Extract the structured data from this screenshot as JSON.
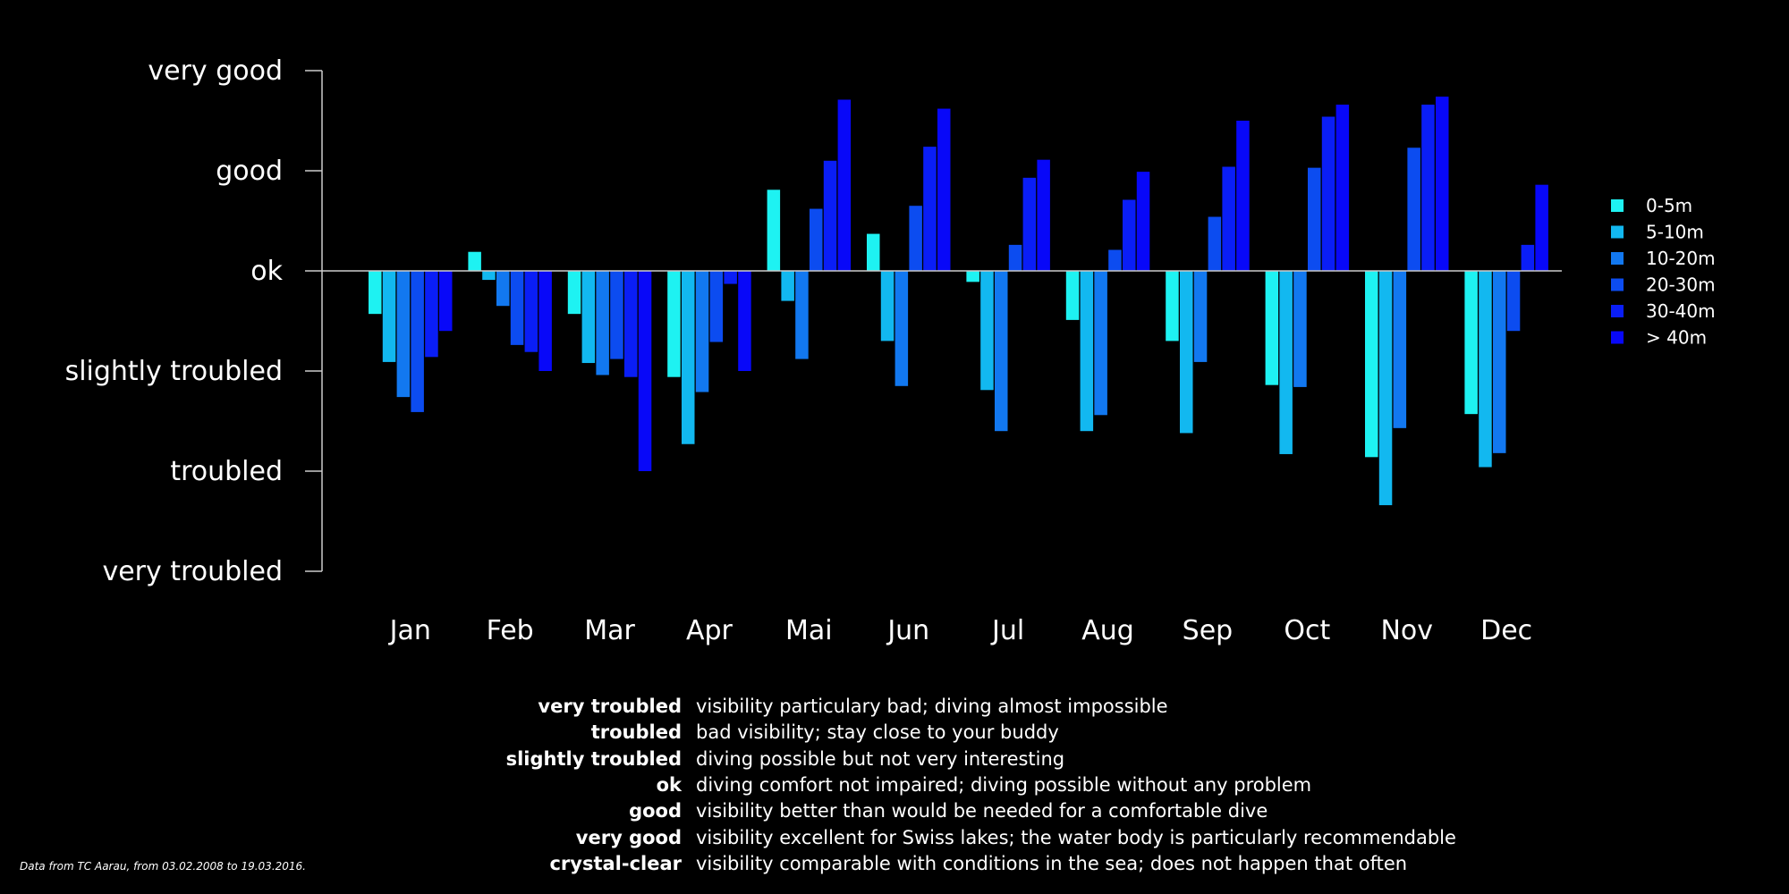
{
  "chart_data": {
    "type": "bar",
    "title": "",
    "xlabel": "",
    "ylabel": "",
    "categories": [
      "Jan",
      "Feb",
      "Mar",
      "Apr",
      "Mai",
      "Jun",
      "Jul",
      "Aug",
      "Sep",
      "Oct",
      "Nov",
      "Dec"
    ],
    "y_ticks": [
      {
        "value": 2,
        "label": "very good"
      },
      {
        "value": 1,
        "label": "good"
      },
      {
        "value": 0,
        "label": "ok"
      },
      {
        "value": -1,
        "label": "slightly troubled"
      },
      {
        "value": -2,
        "label": "troubled"
      },
      {
        "value": -3,
        "label": "very troubled"
      }
    ],
    "ylim": [
      -3,
      2
    ],
    "baseline": 0,
    "grid": false,
    "legend_position": "right",
    "series": [
      {
        "name": "0-5m",
        "color": "#1ef2f2",
        "values": [
          -0.43,
          0.19,
          -0.43,
          -1.06,
          0.81,
          0.37,
          -0.11,
          -0.49,
          -0.7,
          -1.14,
          -1.86,
          -1.43
        ]
      },
      {
        "name": "5-10m",
        "color": "#12b8f0",
        "values": [
          -0.91,
          -0.09,
          -0.92,
          -1.73,
          -0.3,
          -0.7,
          -1.19,
          -1.6,
          -1.62,
          -1.83,
          -2.34,
          -1.96
        ]
      },
      {
        "name": "10-20m",
        "color": "#1278f0",
        "values": [
          -1.26,
          -0.35,
          -1.04,
          -1.21,
          -0.88,
          -1.15,
          -1.6,
          -1.44,
          -0.91,
          -1.16,
          -1.57,
          -1.82
        ]
      },
      {
        "name": "20-30m",
        "color": "#0c4cf0",
        "values": [
          -1.41,
          -0.74,
          -0.88,
          -0.71,
          0.62,
          0.65,
          0.26,
          0.21,
          0.54,
          1.03,
          1.23,
          -0.6
        ]
      },
      {
        "name": "30-40m",
        "color": "#0a1ef6",
        "values": [
          -0.86,
          -0.81,
          -1.06,
          -0.13,
          1.1,
          1.24,
          0.93,
          0.71,
          1.04,
          1.54,
          1.66,
          0.26
        ]
      },
      {
        "name": "> 40m",
        "color": "#0808f8",
        "values": [
          -0.6,
          -1.0,
          -2.0,
          -1.0,
          1.71,
          1.62,
          1.11,
          0.99,
          1.5,
          1.66,
          1.74,
          0.86
        ]
      }
    ]
  },
  "glossary": [
    {
      "term": "very troubled",
      "description": "visibility particulary bad; diving almost impossible"
    },
    {
      "term": "troubled",
      "description": "bad visibility; stay close to your buddy"
    },
    {
      "term": "slightly troubled",
      "description": "diving possible but not very interesting"
    },
    {
      "term": "ok",
      "description": "diving comfort not impaired; diving possible without any problem"
    },
    {
      "term": "good",
      "description": "visibility better than would be needed for a comfortable dive"
    },
    {
      "term": "very good",
      "description": "visibility excellent for Swiss lakes; the water body is particularly recommendable"
    },
    {
      "term": "crystal-clear",
      "description": "visibility comparable with conditions in the sea; does not happen that often"
    }
  ],
  "source_note": "Data from TC Aarau, from 03.02.2008 to 19.03.2016."
}
